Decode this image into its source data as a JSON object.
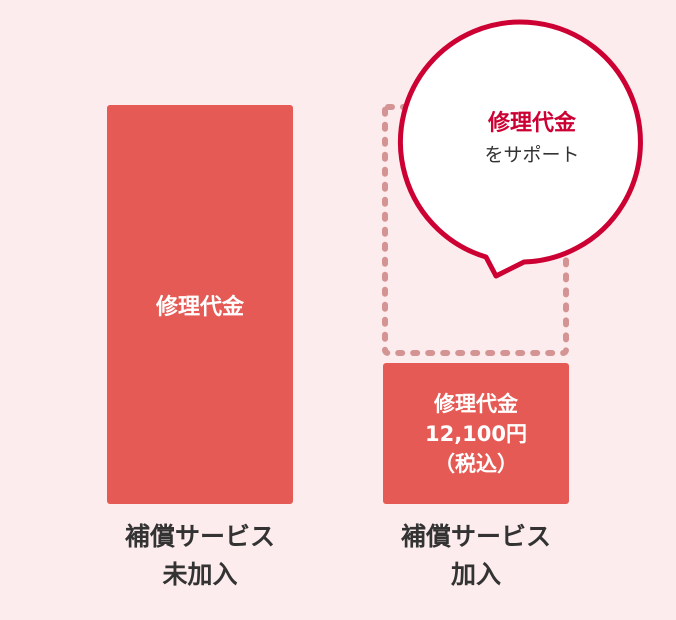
{
  "colors": {
    "background": "#fdeced",
    "bar": "#e65a55",
    "bubble_border": "#cc0033",
    "dotted_outline": "#d49494"
  },
  "left": {
    "bar_text": "修理代金",
    "label_line1": "補償サービス",
    "label_line2": "未加入"
  },
  "right": {
    "bar_line1": "修理代金",
    "bar_line2": "12,100円",
    "bar_line3": "（税込）",
    "label_line1": "補償サービス",
    "label_line2": "加入"
  },
  "bubble": {
    "line1": "修理代金",
    "line2": "をサポート"
  }
}
